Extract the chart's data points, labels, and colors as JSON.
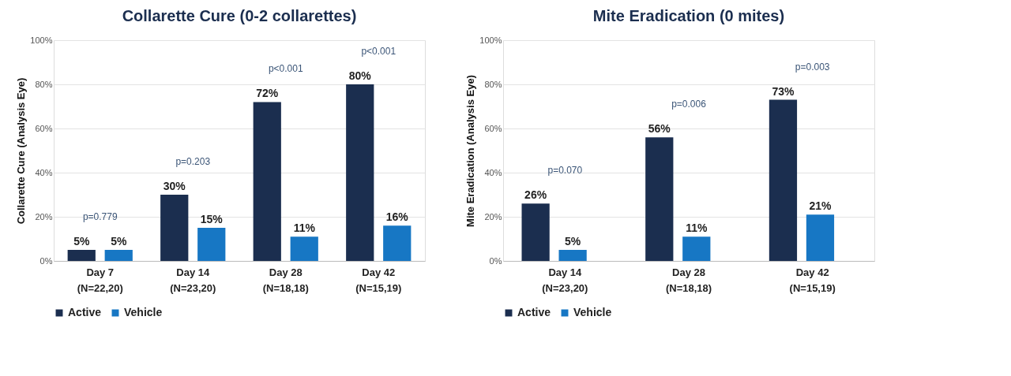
{
  "chart_data": [
    {
      "type": "bar",
      "title": "Collarette Cure (0-2 collarettes)",
      "ylabel": "Collarette Cure (Analysis Eye)",
      "categories": [
        "Day 7\n(N=22,20)",
        "Day 14\n(N=23,20)",
        "Day 28\n(N=18,18)",
        "Day 42\n(N=15,19)"
      ],
      "series": [
        {
          "name": "Active",
          "color": "#1b2e4f",
          "values": [
            5,
            30,
            72,
            80
          ]
        },
        {
          "name": "Vehicle",
          "color": "#1777c4",
          "values": [
            5,
            15,
            11,
            16
          ]
        }
      ],
      "value_labels": [
        [
          "5%",
          "30%",
          "72%",
          "80%"
        ],
        [
          "5%",
          "15%",
          "11%",
          "16%"
        ]
      ],
      "ylim": [
        0,
        100
      ],
      "yticks": [
        {
          "value": 0,
          "label": "0%"
        },
        {
          "value": 20,
          "label": "20%"
        },
        {
          "value": 40,
          "label": "40%"
        },
        {
          "value": 60,
          "label": "60%"
        },
        {
          "value": 80,
          "label": "80%"
        },
        {
          "value": 100,
          "label": "100%"
        }
      ],
      "annotations": [
        "p=0.779",
        "p=0.203",
        "p<0.001",
        "p<0.001"
      ],
      "grid": "y",
      "legend": "bottom"
    },
    {
      "type": "bar",
      "title": "Mite Eradication (0 mites)",
      "ylabel": "Mite Eradication (Analysis Eye)",
      "categories": [
        "Day 14\n(N=23,20)",
        "Day 28\n(N=18,18)",
        "Day 42\n(N=15,19)"
      ],
      "series": [
        {
          "name": "Active",
          "color": "#1b2e4f",
          "values": [
            26,
            56,
            73
          ]
        },
        {
          "name": "Vehicle",
          "color": "#1777c4",
          "values": [
            5,
            11,
            21
          ]
        }
      ],
      "value_labels": [
        [
          "26%",
          "56%",
          "73%"
        ],
        [
          "5%",
          "11%",
          "21%"
        ]
      ],
      "ylim": [
        0,
        100
      ],
      "yticks": [
        {
          "value": 0,
          "label": "0%"
        },
        {
          "value": 20,
          "label": "20%"
        },
        {
          "value": 40,
          "label": "40%"
        },
        {
          "value": 60,
          "label": "60%"
        },
        {
          "value": 80,
          "label": "80%"
        },
        {
          "value": 100,
          "label": "100%"
        }
      ],
      "annotations": [
        "p=0.070",
        "p=0.006",
        "p=0.003"
      ],
      "grid": "y",
      "legend": "bottom"
    }
  ]
}
